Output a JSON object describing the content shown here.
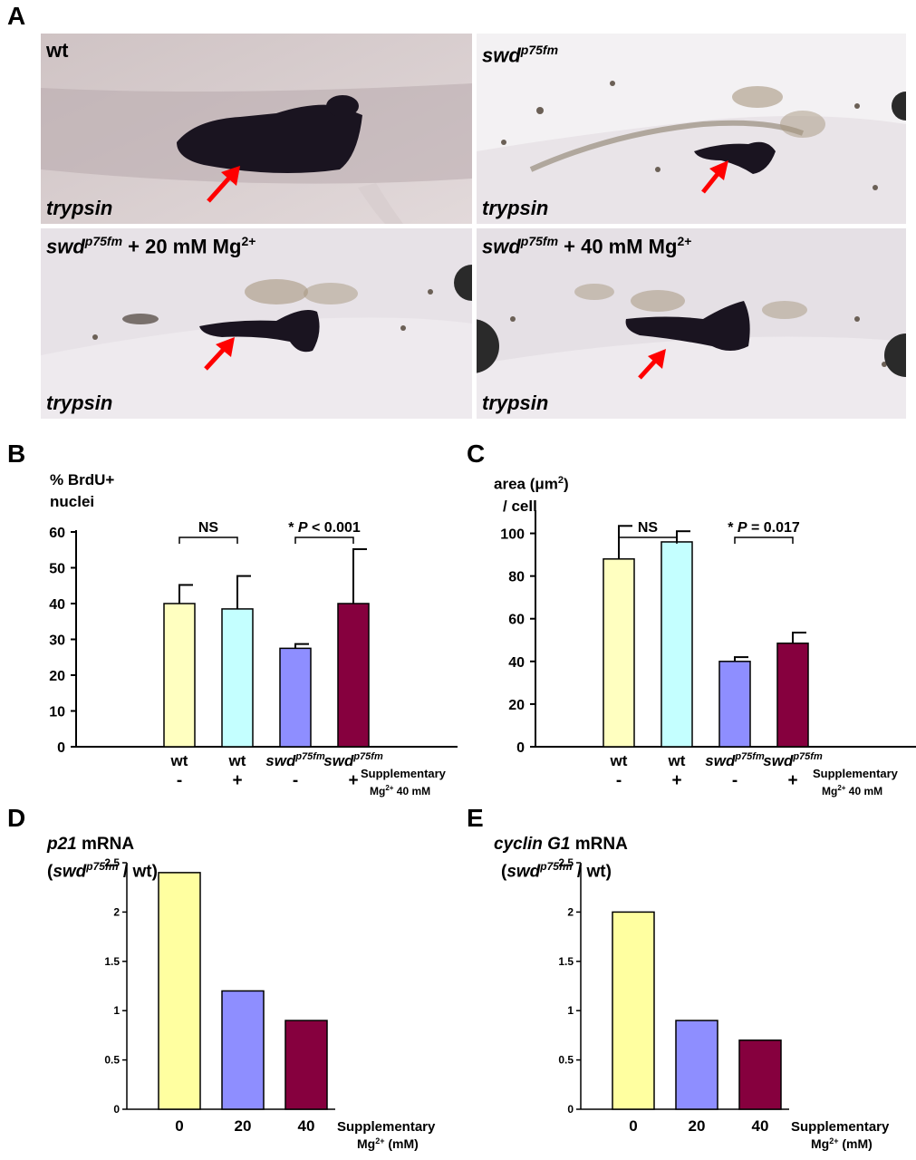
{
  "panel_labels": [
    "A",
    "B",
    "C",
    "D",
    "E"
  ],
  "panel_a": {
    "photos": [
      {
        "genotype_main": "wt",
        "genotype_sup": "",
        "treatment": "",
        "stain": "trypsin"
      },
      {
        "genotype_main": "swd",
        "genotype_sup": "p75fm",
        "treatment": "",
        "stain": "trypsin"
      },
      {
        "genotype_main": "swd",
        "genotype_sup": "p75fm",
        "treatment": " + 20 mM Mg",
        "treatment_sup": "2+",
        "stain": "trypsin"
      },
      {
        "genotype_main": "swd",
        "genotype_sup": "p75fm",
        "treatment": " + 40 mM Mg",
        "treatment_sup": "2+",
        "stain": "trypsin"
      }
    ],
    "arrow_color": "#ff0000",
    "tissue_color": "#1a1420"
  },
  "panel_b": {
    "ylabel_line1": "% BrdU+",
    "ylabel_line2": "nuclei"
  },
  "panel_c": {
    "ylabel_line1": "area (μm",
    "ylabel_sup": "2",
    "ylabel_line1_end": ")",
    "ylabel_line2": "/ cell"
  },
  "panel_d": {
    "ylabel_gene": "p21",
    "ylabel_rest": " mRNA",
    "ylabel_line2_open": "(",
    "ylabel_line2_geno": "swd",
    "ylabel_line2_sup": "p75fm",
    "ylabel_line2_close": " / wt)"
  },
  "panel_e": {
    "ylabel_gene": "cyclin G1",
    "ylabel_rest": " mRNA",
    "ylabel_line2_open": "(",
    "ylabel_line2_geno": "swd",
    "ylabel_line2_sup": "p75fm",
    "ylabel_line2_close": " / wt)"
  },
  "chart_data": [
    {
      "id": "B",
      "type": "bar",
      "categories": [
        "wt -",
        "wt +",
        "swdp75fm -",
        "swdp75fm +"
      ],
      "cat_line1": [
        "wt",
        "wt",
        "swd",
        "swd"
      ],
      "cat_line1_sup": [
        "",
        "",
        "p75fm",
        "p75fm"
      ],
      "cat_line2": [
        "-",
        "+",
        "-",
        "+"
      ],
      "values": [
        40,
        38.5,
        27.5,
        40
      ],
      "errors": [
        5.2,
        9.2,
        1.2,
        15.2
      ],
      "colors": [
        "#ffffc0",
        "#c4ffff",
        "#8e8eff",
        "#86003e"
      ],
      "ylim": [
        0,
        60
      ],
      "yticks": [
        0,
        10,
        20,
        30,
        40,
        50,
        60
      ],
      "comparisons": [
        {
          "bars": [
            0,
            1
          ],
          "label": "NS"
        },
        {
          "bars": [
            2,
            3
          ],
          "label": "* P < 0.001"
        }
      ],
      "note_line1": "Supplementary",
      "note_line2": "Mg",
      "note_line2_sup": "2+",
      "note_line2_end": " 40 mM"
    },
    {
      "id": "C",
      "type": "bar",
      "categories": [
        "wt -",
        "wt +",
        "swdp75fm -",
        "swdp75fm +"
      ],
      "cat_line1": [
        "wt",
        "wt",
        "swd",
        "swd"
      ],
      "cat_line1_sup": [
        "",
        "",
        "p75fm",
        "p75fm"
      ],
      "cat_line2": [
        "-",
        "+",
        "-",
        "+"
      ],
      "values": [
        88,
        96,
        40,
        48.5
      ],
      "errors": [
        15.5,
        5,
        2,
        5
      ],
      "colors": [
        "#ffffc0",
        "#c4ffff",
        "#8e8eff",
        "#86003e"
      ],
      "ylim": [
        0,
        110
      ],
      "yticks": [
        0,
        20,
        40,
        60,
        80,
        100
      ],
      "comparisons": [
        {
          "bars": [
            0,
            1
          ],
          "label": "NS"
        },
        {
          "bars": [
            2,
            3
          ],
          "label": "* P = 0.017"
        }
      ],
      "note_line1": "Supplementary",
      "note_line2": "Mg",
      "note_line2_sup": "2+",
      "note_line2_end": " 40 mM"
    },
    {
      "id": "D",
      "type": "bar",
      "categories": [
        "0",
        "20",
        "40"
      ],
      "values": [
        2.4,
        1.2,
        0.9
      ],
      "colors": [
        "#ffffa0",
        "#8e8eff",
        "#86003e"
      ],
      "ylim": [
        0,
        2.5
      ],
      "yticks": [
        "0",
        "0.5",
        "1",
        "1.5",
        "2",
        "2.5"
      ],
      "note_line1": "Supplementary",
      "note_line2": "Mg",
      "note_line2_sup": "2+",
      "note_line2_end": " (mM)"
    },
    {
      "id": "E",
      "type": "bar",
      "categories": [
        "0",
        "20",
        "40"
      ],
      "values": [
        2.0,
        0.9,
        0.7
      ],
      "colors": [
        "#ffffa0",
        "#8e8eff",
        "#86003e"
      ],
      "ylim": [
        0,
        2.5
      ],
      "yticks": [
        "0",
        "0.5",
        "1",
        "1.5",
        "2",
        "2.5"
      ],
      "note_line1": "Supplementary",
      "note_line2": "Mg",
      "note_line2_sup": "2+",
      "note_line2_end": " (mM)"
    }
  ]
}
